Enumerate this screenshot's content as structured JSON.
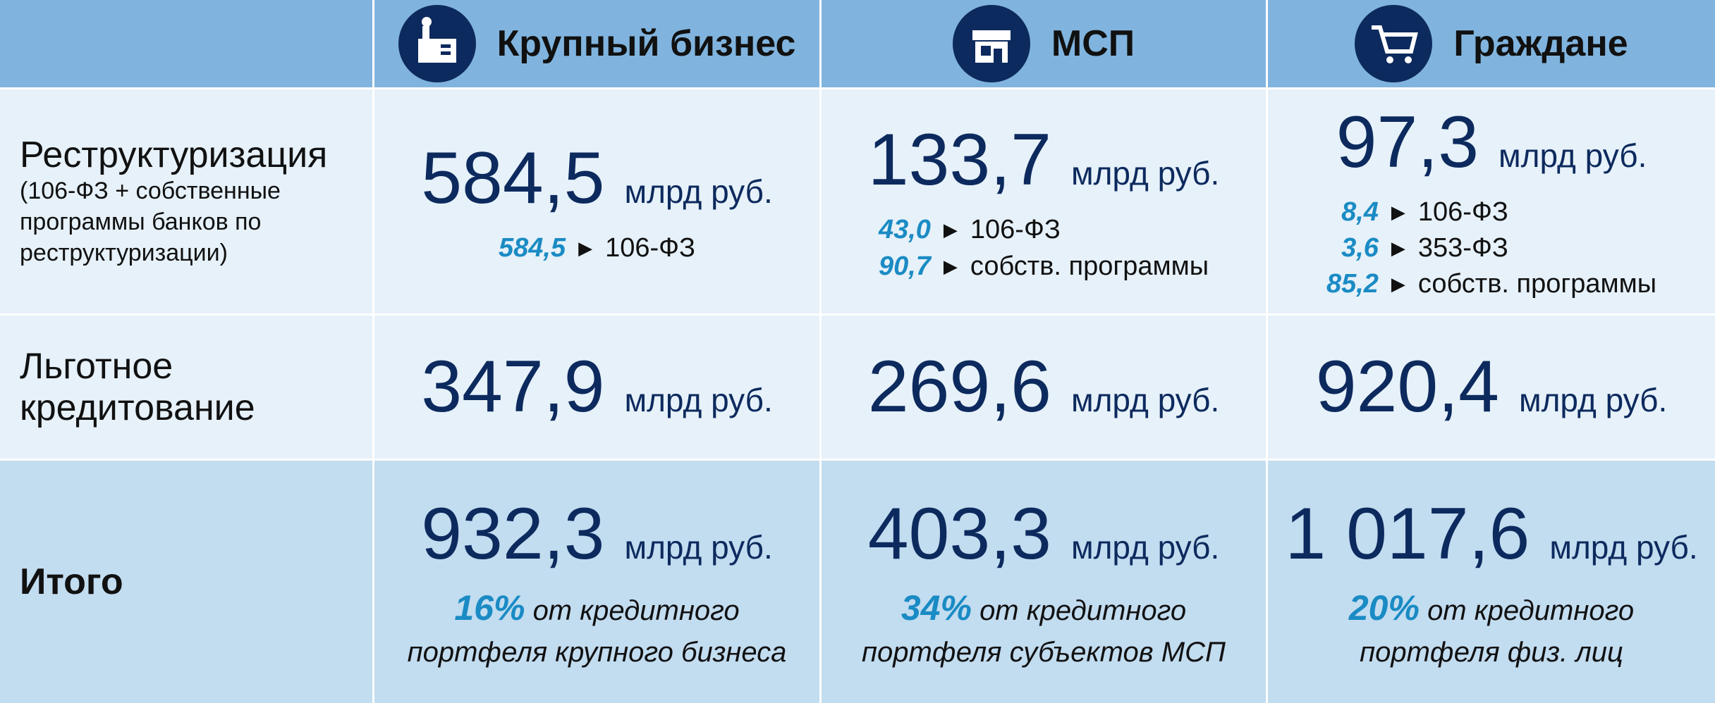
{
  "header": {
    "columns": [
      "Крупный бизнес",
      "МСП",
      "Граждане"
    ]
  },
  "rows": [
    {
      "label": "Реструктуризация",
      "note": "(106-ФЗ + собственные программы банков по реструктуризации)",
      "cells": [
        {
          "value": "584,5",
          "unit": "млрд руб.",
          "details": [
            {
              "value": "584,5",
              "label": "106-ФЗ"
            }
          ]
        },
        {
          "value": "133,7",
          "unit": "млрд руб.",
          "details": [
            {
              "value": "43,0",
              "label": "106-ФЗ"
            },
            {
              "value": "90,7",
              "label": "собств. программы"
            }
          ]
        },
        {
          "value": "97,3",
          "unit": "млрд руб.",
          "details": [
            {
              "value": "8,4",
              "label": "106-ФЗ"
            },
            {
              "value": "3,6",
              "label": "353-ФЗ"
            },
            {
              "value": "85,2",
              "label": "собств. программы"
            }
          ]
        }
      ]
    },
    {
      "label": "Льготное кредитование",
      "cells": [
        {
          "value": "347,9",
          "unit": "млрд руб."
        },
        {
          "value": "269,6",
          "unit": "млрд руб."
        },
        {
          "value": "920,4",
          "unit": "млрд руб."
        }
      ]
    },
    {
      "label": "Итого",
      "cells": [
        {
          "value": "932,3",
          "unit": "млрд руб.",
          "share": "16%",
          "share_text": "от кредитного портфеля крупного бизнеса"
        },
        {
          "value": "403,3",
          "unit": "млрд руб.",
          "share": "34%",
          "share_text": "от кредитного портфеля субъектов МСП"
        },
        {
          "value": "1 017,6",
          "unit": "млрд руб.",
          "share": "20%",
          "share_text": "от кредитного портфеля физ. лиц"
        }
      ]
    }
  ]
}
